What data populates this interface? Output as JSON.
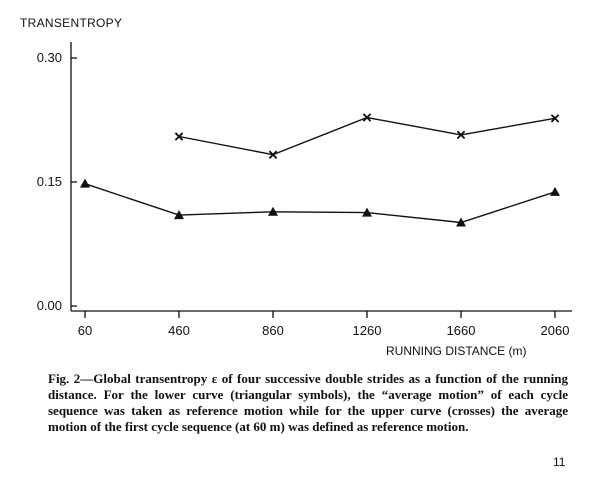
{
  "chart_data": {
    "type": "line",
    "ylabel": "TRANSENTROPY",
    "xlabel": "RUNNING DISTANCE (m)",
    "ylim": [
      0.0,
      0.3
    ],
    "y_ticks": [
      0.0,
      0.15,
      0.3
    ],
    "y_tick_labels": [
      "0.00",
      "0.15",
      "0.30"
    ],
    "x_ticks": [
      60,
      460,
      860,
      1260,
      1660,
      2060
    ],
    "x_tick_labels": [
      "60",
      "460",
      "860",
      "1260",
      "1660",
      "2060"
    ],
    "grid": false,
    "series": [
      {
        "marker": "cross",
        "x": [
          460,
          860,
          1260,
          1660,
          2060
        ],
        "y": [
          0.205,
          0.183,
          0.228,
          0.207,
          0.227
        ]
      },
      {
        "marker": "triangle",
        "x": [
          60,
          460,
          860,
          1260,
          1660,
          2060
        ],
        "y": [
          0.148,
          0.11,
          0.114,
          0.113,
          0.101,
          0.138
        ]
      }
    ]
  },
  "caption": "Fig. 2—Global transentropy ε of four successive double strides as a function of the running distance. For the lower curve (triangular symbols), the “average motion” of each cycle sequence was taken as reference motion while for the upper curve (crosses) the average motion of the first cycle sequence (at 60 m) was defined as reference motion.",
  "page_number": "11"
}
